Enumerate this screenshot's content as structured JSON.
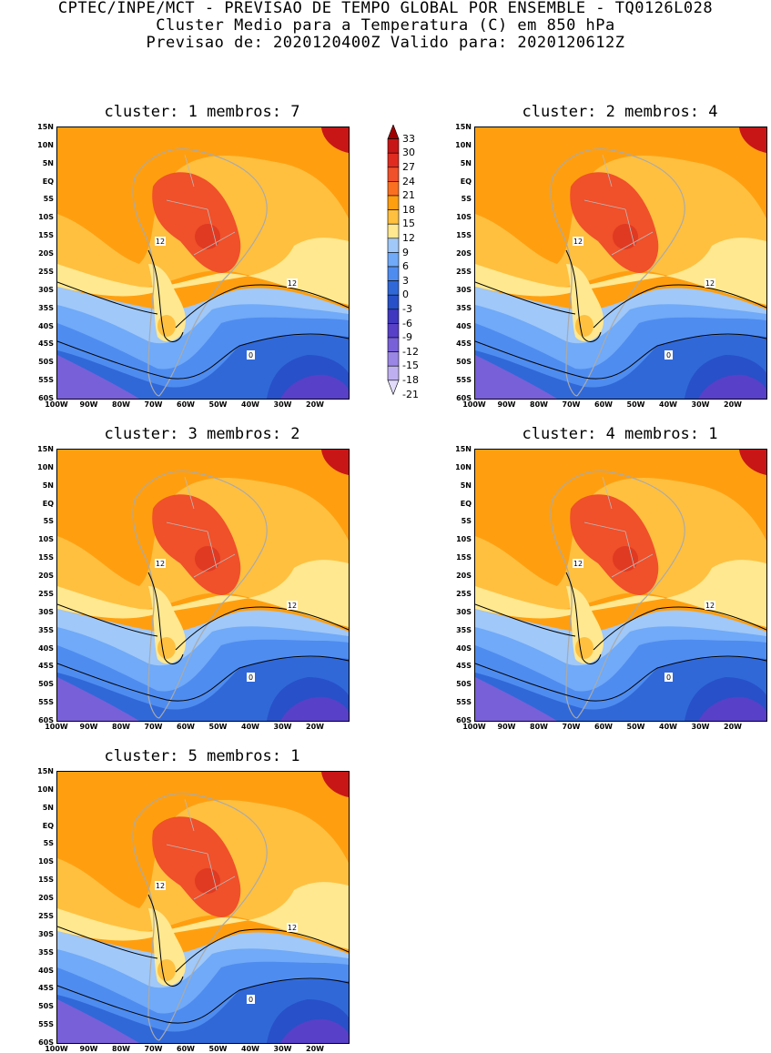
{
  "header": {
    "line1": "CPTEC/INPE/MCT - PREVISAO DE TEMPO GLOBAL POR ENSEMBLE - TQ0126L028",
    "line2": "Cluster Medio para a Temperatura (C) em 850 hPa",
    "line3": "Previsao de: 2020120400Z   Valido para: 2020120612Z"
  },
  "panels": [
    {
      "title": "cluster: 1  membros: 7"
    },
    {
      "title": "cluster: 2  membros: 4"
    },
    {
      "title": "cluster: 3  membros: 2"
    },
    {
      "title": "cluster: 4  membros: 1"
    },
    {
      "title": "cluster: 5  membros: 1"
    }
  ],
  "lat_labels": [
    "15N",
    "10N",
    "5N",
    "EQ",
    "5S",
    "10S",
    "15S",
    "20S",
    "25S",
    "30S",
    "35S",
    "40S",
    "45S",
    "50S",
    "55S",
    "60S"
  ],
  "lon_labels": [
    "100W",
    "90W",
    "80W",
    "70W",
    "60W",
    "50W",
    "40W",
    "30W",
    "20W"
  ],
  "colorbar": {
    "labels": [
      "33",
      "30",
      "27",
      "24",
      "21",
      "18",
      "15",
      "12",
      "9",
      "6",
      "3",
      "0",
      "-3",
      "-6",
      "-9",
      "-12",
      "-15",
      "-18",
      "-21"
    ],
    "colors": [
      "#a00000",
      "#c81616",
      "#e02c20",
      "#f0502a",
      "#fa7020",
      "#ff9f10",
      "#ffc040",
      "#ffe890",
      "#a0c8f8",
      "#70aaf8",
      "#4f8cf0",
      "#3068d8",
      "#2850c8",
      "#4038c0",
      "#5840c8",
      "#7860d8",
      "#9a86e4",
      "#beb0f0",
      "#e2dcfa"
    ]
  },
  "contour_labels": {
    "twelve": "12",
    "zero": "0"
  }
}
